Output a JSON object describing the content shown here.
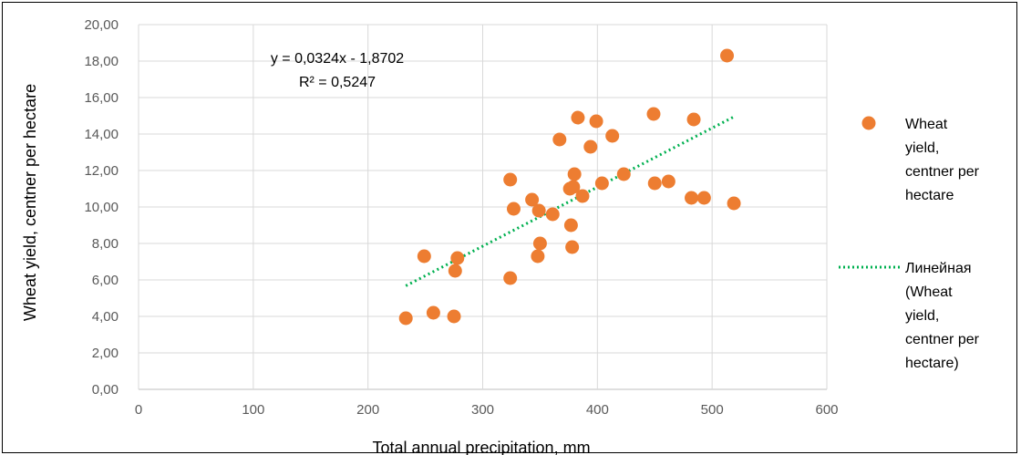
{
  "chart_data": {
    "type": "scatter",
    "xlabel": "Total annual precipitation, mm",
    "ylabel": "Wheat yield, centner per hectare",
    "xlim": [
      0,
      600
    ],
    "ylim": [
      0,
      20
    ],
    "x_ticks": [
      "0",
      "100",
      "200",
      "300",
      "400",
      "500",
      "600"
    ],
    "y_ticks": [
      "0,00",
      "2,00",
      "4,00",
      "6,00",
      "8,00",
      "10,00",
      "12,00",
      "14,00",
      "16,00",
      "18,00",
      "20,00"
    ],
    "grid": "vertical and horizontal",
    "legend_position": "right",
    "series": [
      {
        "name": "Wheat yield, centner per hectare",
        "color": "#ED7D31",
        "marker": "circle",
        "points": [
          [
            233,
            3.9
          ],
          [
            249,
            7.3
          ],
          [
            257,
            4.2
          ],
          [
            275,
            4.0
          ],
          [
            276,
            6.5
          ],
          [
            278,
            7.2
          ],
          [
            324,
            6.1
          ],
          [
            324,
            11.5
          ],
          [
            327,
            9.9
          ],
          [
            343,
            10.4
          ],
          [
            348,
            7.3
          ],
          [
            349,
            9.8
          ],
          [
            350,
            8.0
          ],
          [
            361,
            9.6
          ],
          [
            367,
            13.7
          ],
          [
            376,
            11.0
          ],
          [
            377,
            9.0
          ],
          [
            378,
            7.8
          ],
          [
            379,
            11.1
          ],
          [
            380,
            11.8
          ],
          [
            383,
            14.9
          ],
          [
            387,
            10.6
          ],
          [
            394,
            13.3
          ],
          [
            399,
            14.7
          ],
          [
            404,
            11.3
          ],
          [
            413,
            13.9
          ],
          [
            423,
            11.8
          ],
          [
            449,
            15.1
          ],
          [
            450,
            11.3
          ],
          [
            462,
            11.4
          ],
          [
            482,
            10.5
          ],
          [
            484,
            14.8
          ],
          [
            493,
            10.5
          ],
          [
            513,
            18.3
          ],
          [
            519,
            10.2
          ]
        ]
      }
    ],
    "trendline": {
      "name": "Линейная (Wheat yield, centner per hectare)",
      "type": "linear",
      "color": "#00B050",
      "style": "dotted",
      "x_range": [
        233,
        519
      ],
      "slope": 0.0324,
      "intercept": -1.8702,
      "equation": "y = 0,0324x - 1,8702",
      "r_squared": "R² = 0,5247"
    }
  },
  "legend": {
    "series_lines": [
      "Wheat",
      "yield,",
      "centner per",
      "hectare"
    ],
    "trend_lines": [
      "Линейная",
      "(Wheat",
      "yield,",
      "centner per",
      "hectare)"
    ]
  }
}
